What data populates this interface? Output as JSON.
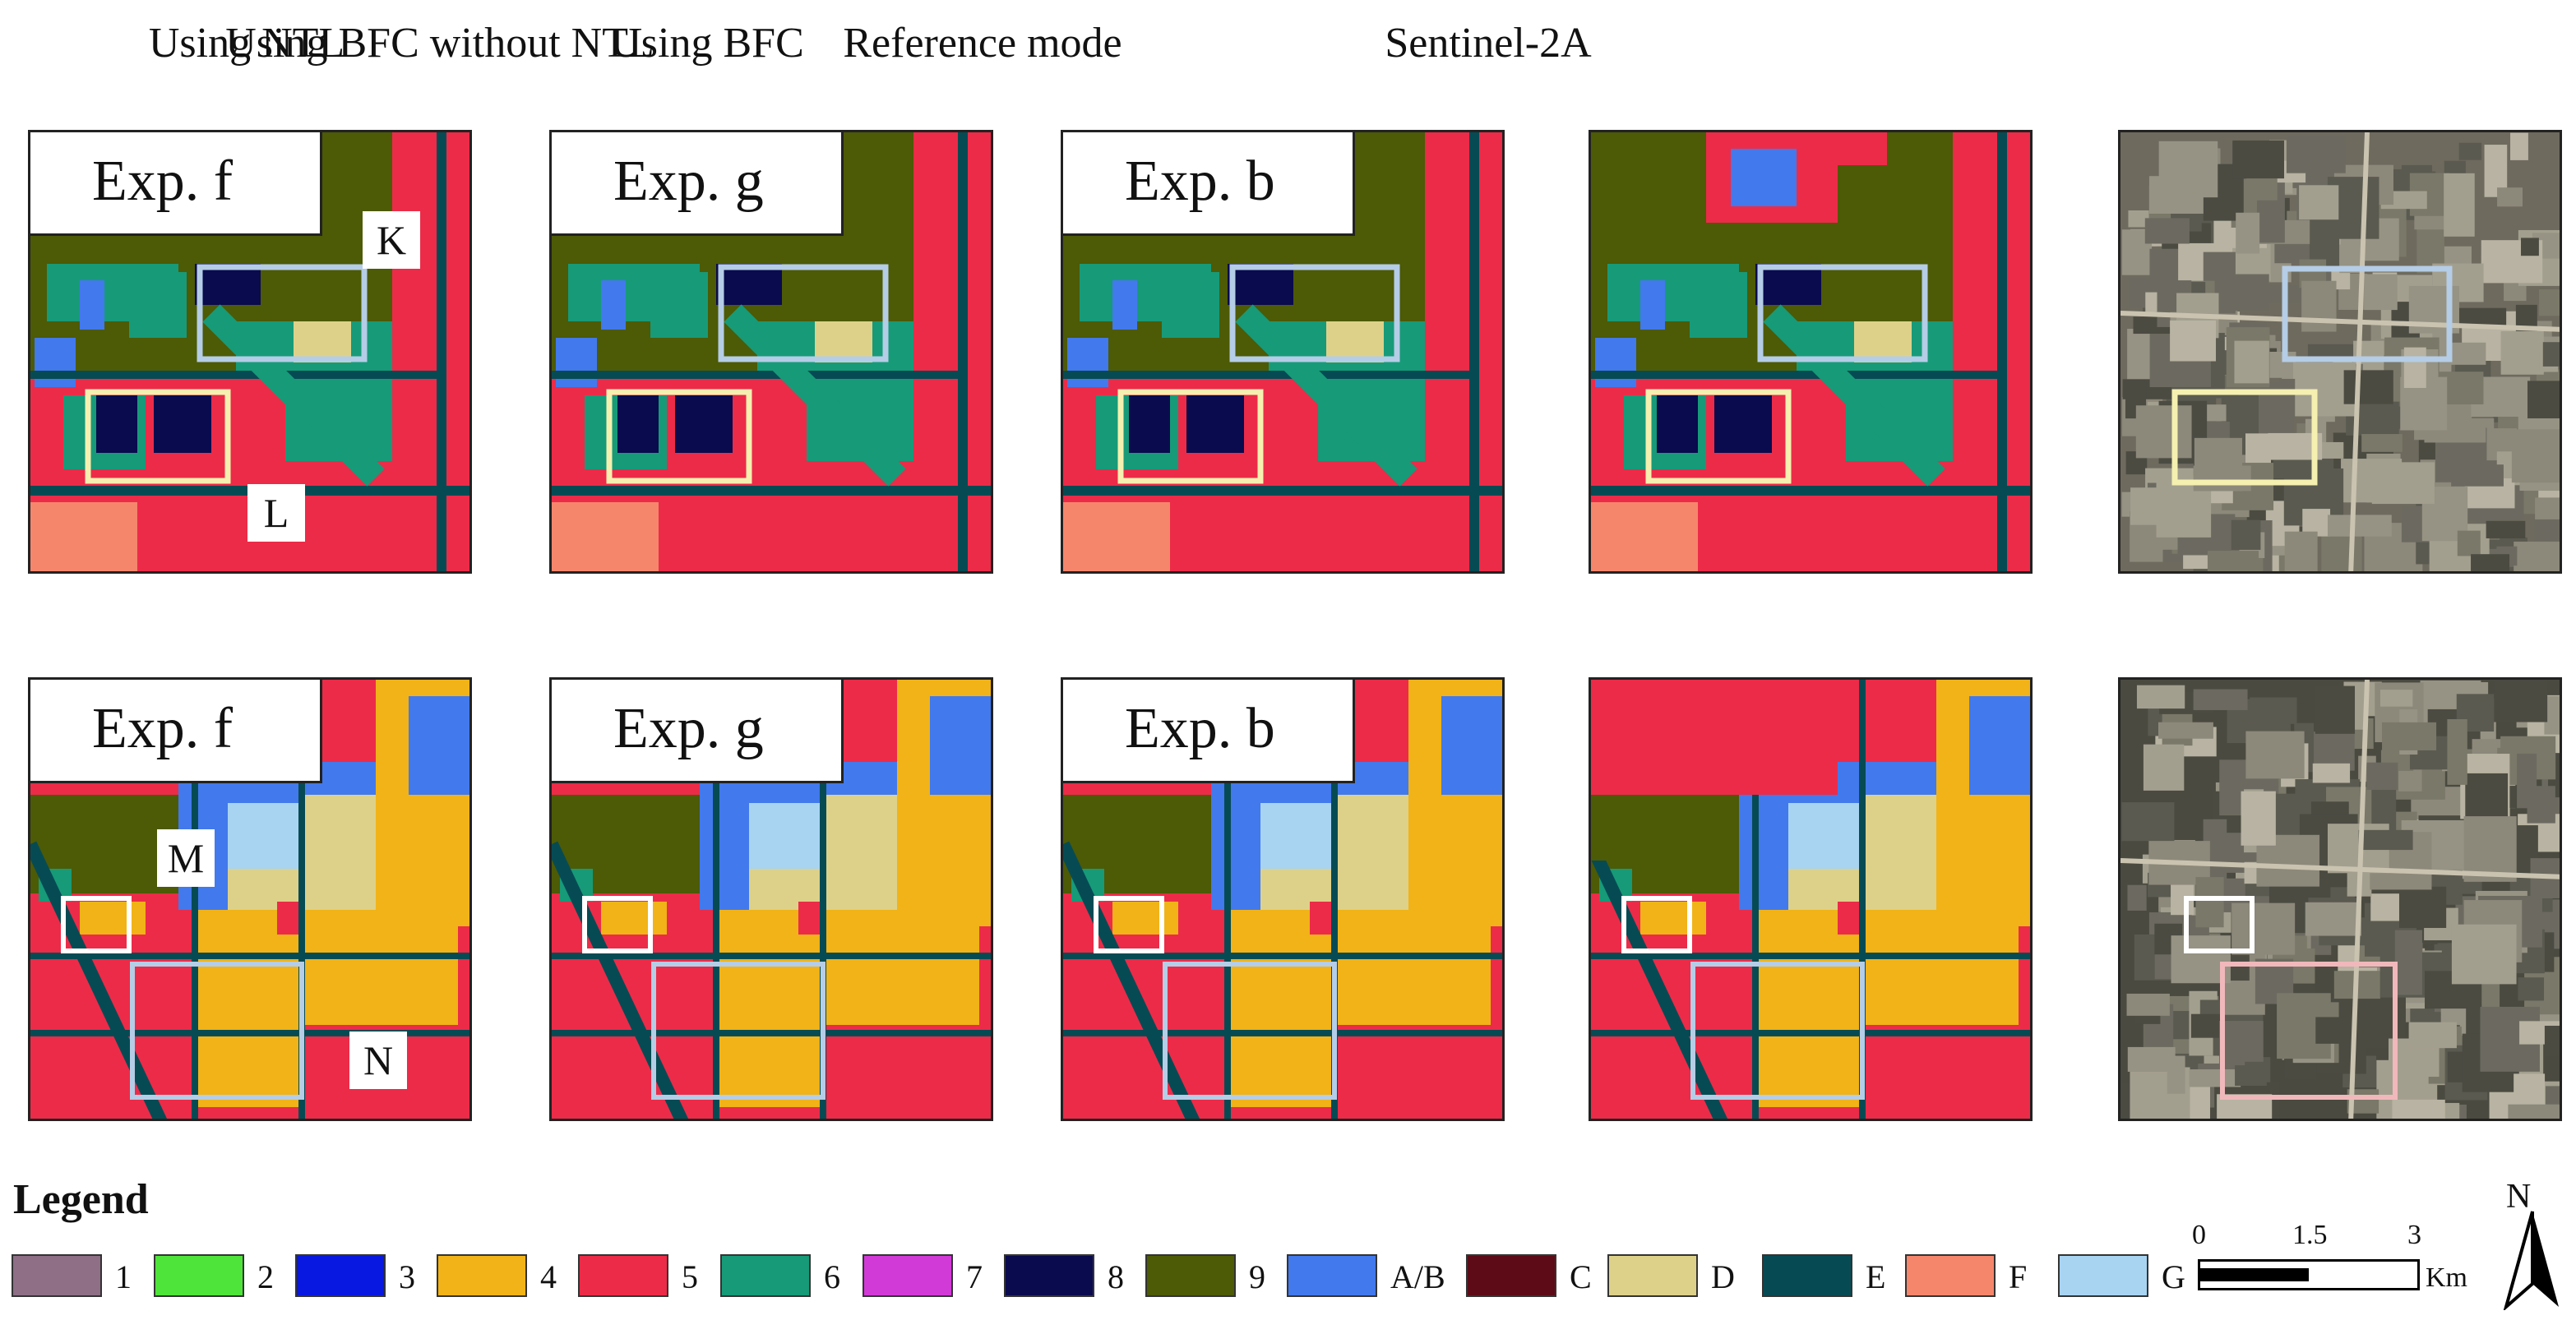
{
  "column_titles": [
    "Using NTL",
    "Using BFC without NTL",
    "Using BFC",
    "Reference mode",
    "Sentinel-2A"
  ],
  "rows": [
    {
      "panels": [
        {
          "label": "Exp. f",
          "callouts": [
            "K",
            "L"
          ]
        },
        {
          "label": "Exp. g",
          "callouts": []
        },
        {
          "label": "Exp. b",
          "callouts": []
        },
        {
          "label": "",
          "callouts": []
        },
        {
          "label": "",
          "callouts": []
        }
      ]
    },
    {
      "panels": [
        {
          "label": "Exp. f",
          "callouts": [
            "M",
            "N"
          ]
        },
        {
          "label": "Exp. g",
          "callouts": []
        },
        {
          "label": "Exp. b",
          "callouts": []
        },
        {
          "label": "",
          "callouts": []
        },
        {
          "label": "",
          "callouts": []
        }
      ]
    }
  ],
  "legend": {
    "title": "Legend",
    "items": [
      {
        "label": "1",
        "color": "#8e6f86"
      },
      {
        "label": "2",
        "color": "#4ee43a"
      },
      {
        "label": "3",
        "color": "#0818e0"
      },
      {
        "label": "4",
        "color": "#f1b317"
      },
      {
        "label": "5",
        "color": "#ec2b48"
      },
      {
        "label": "6",
        "color": "#179a78"
      },
      {
        "label": "7",
        "color": "#d23ad8"
      },
      {
        "label": "8",
        "color": "#0a0a4e"
      },
      {
        "label": "9",
        "color": "#4d5a06"
      },
      {
        "label": "A/B",
        "color": "#4279ec"
      },
      {
        "label": "C",
        "color": "#5d0b16"
      },
      {
        "label": "D",
        "color": "#ddd18a"
      },
      {
        "label": "E",
        "color": "#064b54"
      },
      {
        "label": "F",
        "color": "#f5866c"
      },
      {
        "label": "G",
        "color": "#a8d4f2"
      }
    ]
  },
  "scale": {
    "ticks": [
      "0",
      "1.5",
      "3"
    ],
    "unit": "Km"
  },
  "north_label": "N",
  "highlight_colors": {
    "top_blue": "#b5cde6",
    "top_yellow": "#f5f0b0",
    "bottom_white": "#ffffff",
    "bottom_pink": "#f1b8bb"
  }
}
